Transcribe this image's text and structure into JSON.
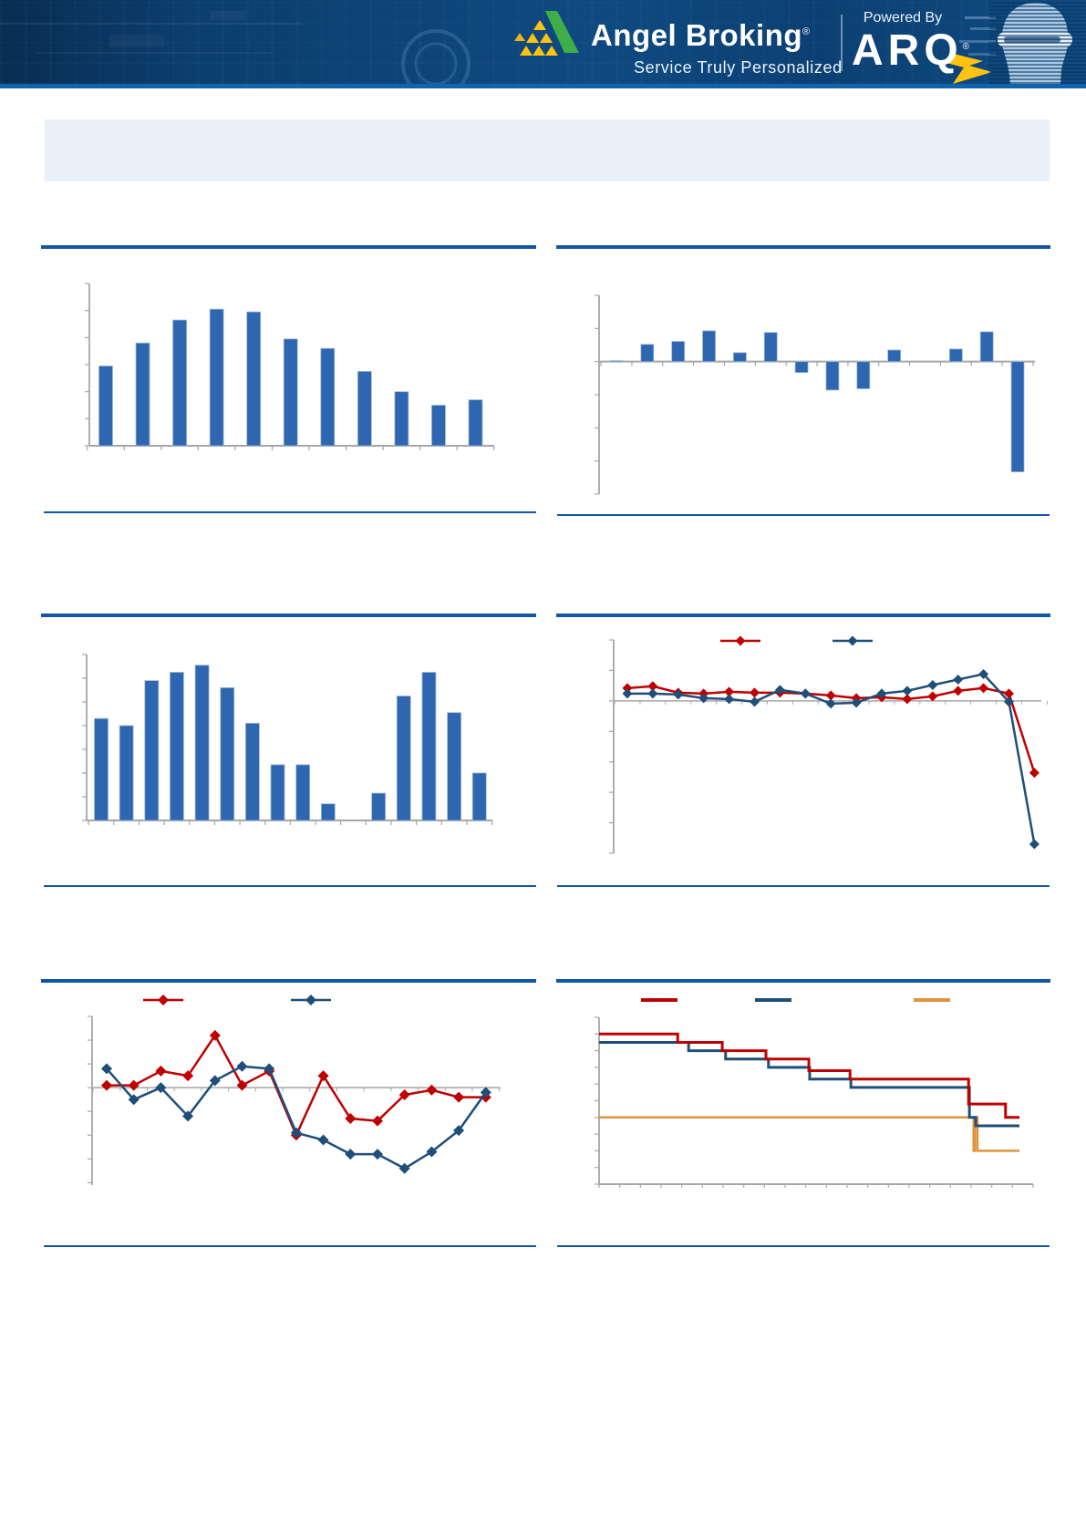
{
  "header": {
    "brand": "Angel Broking",
    "brand_reg": "®",
    "tagline": "Service Truly Personalized",
    "powered_by": "Powered By",
    "product": "ARQ",
    "product_reg": "®"
  },
  "colors": {
    "header_bg": "#0D4478",
    "header_accent": "#1163AE",
    "divider_blue": "#1257A4",
    "panel_bg": "#E9F0F8",
    "bar_blue": "#2F66B0",
    "series_red": "#C00000",
    "series_navy": "#1F4E79",
    "series_orange": "#E2913C",
    "axis_gray": "#A6A6A6",
    "logo_green": "#3FAE49",
    "logo_yellow": "#FFC20E"
  },
  "chart_data": [
    {
      "id": "top-left-bar",
      "type": "bar",
      "title": "",
      "tick_labels_visible": false,
      "values": [
        5.9,
        7.6,
        9.3,
        10.1,
        9.9,
        7.9,
        7.2,
        5.5,
        4.0,
        3.0,
        3.4
      ],
      "ylim": [
        0,
        12
      ],
      "ytick_step": 2,
      "bar_color": "#2F66B0"
    },
    {
      "id": "top-right-bar",
      "type": "bar",
      "title": "",
      "tick_labels_visible": false,
      "values": [
        0.3,
        5.2,
        6.1,
        9.3,
        2.7,
        8.8,
        -3.3,
        -8.6,
        -8.2,
        3.5,
        0,
        3.8,
        9.0,
        -33.3
      ],
      "ylim": [
        -40,
        20
      ],
      "ytick_step": 10,
      "bar_color": "#2F66B0"
    },
    {
      "id": "middle-left-bar",
      "type": "bar",
      "title": "",
      "tick_labels_visible": false,
      "values": [
        8.6,
        8.0,
        11.8,
        12.5,
        13.1,
        11.2,
        8.2,
        4.7,
        4.7,
        1.4,
        0,
        2.3,
        10.5,
        12.5,
        9.1,
        4.0
      ],
      "ylim": [
        0,
        14
      ],
      "ytick_step": 2,
      "bar_color": "#2F66B0"
    },
    {
      "id": "middle-right-line",
      "type": "line",
      "title": "",
      "tick_labels_visible": false,
      "legend_text_visible": false,
      "marker": "diamond",
      "ylim": [
        -50,
        20
      ],
      "ytick_step": 10,
      "series": [
        {
          "name": "series-red",
          "color": "#C00000",
          "values": [
            4.2,
            4.8,
            2.7,
            2.4,
            3.0,
            2.7,
            2.7,
            2.4,
            1.8,
            0.9,
            1.2,
            0.6,
            1.5,
            3.3,
            4.2,
            2.4,
            -23.6
          ]
        },
        {
          "name": "series-navy",
          "color": "#1F4E79",
          "values": [
            2.4,
            2.4,
            2.1,
            0.9,
            0.6,
            -0.3,
            3.6,
            2.4,
            -0.9,
            -0.6,
            2.4,
            3.3,
            5.2,
            7.0,
            8.8,
            -0.3,
            -47.0
          ]
        }
      ]
    },
    {
      "id": "bottom-left-line",
      "type": "line",
      "title": "",
      "tick_labels_visible": false,
      "legend_text_visible": false,
      "marker": "diamond",
      "ylim": [
        -4.1,
        3.0
      ],
      "ytick_step": 1,
      "series": [
        {
          "name": "series-red",
          "color": "#C00000",
          "values": [
            0.1,
            0.1,
            0.7,
            0.5,
            2.2,
            0.1,
            0.7,
            -2.0,
            0.5,
            -1.3,
            -1.4,
            -0.3,
            -0.1,
            -0.4,
            -0.4
          ]
        },
        {
          "name": "series-navy",
          "color": "#1F4E79",
          "values": [
            0.8,
            -0.5,
            0.0,
            -1.2,
            0.3,
            0.9,
            0.8,
            -1.9,
            -2.2,
            -2.8,
            -2.8,
            -3.4,
            -2.7,
            -1.8,
            -0.2
          ]
        }
      ]
    },
    {
      "id": "bottom-right-step",
      "type": "step",
      "title": "",
      "tick_labels_visible": false,
      "legend_text_visible": false,
      "ylim": [
        2.0,
        7.0
      ],
      "ytick_step": 0.5,
      "x_tick_count": 22,
      "series": [
        {
          "name": "series-red",
          "color": "#C00000",
          "segments": [
            [
              0,
              6.5
            ],
            [
              0.187,
              6.25
            ],
            [
              0.293,
              6.0
            ],
            [
              0.397,
              5.75
            ],
            [
              0.499,
              5.4
            ],
            [
              0.597,
              5.15
            ],
            [
              0.879,
              4.4
            ],
            [
              0.967,
              4.0
            ]
          ]
        },
        {
          "name": "series-navy",
          "color": "#1F4E79",
          "segments": [
            [
              0,
              6.25
            ],
            [
              0.213,
              6.0
            ],
            [
              0.301,
              5.75
            ],
            [
              0.403,
              5.5
            ],
            [
              0.501,
              5.15
            ],
            [
              0.599,
              4.9
            ],
            [
              0.881,
              4.0
            ],
            [
              0.896,
              3.75
            ]
          ]
        },
        {
          "name": "series-orange",
          "color": "#E2913C",
          "segments": [
            [
              0,
              4.0
            ],
            [
              0.891,
              3.0
            ],
            [
              0.894,
              4.0
            ],
            [
              0.9,
              3.0
            ]
          ]
        }
      ]
    }
  ]
}
